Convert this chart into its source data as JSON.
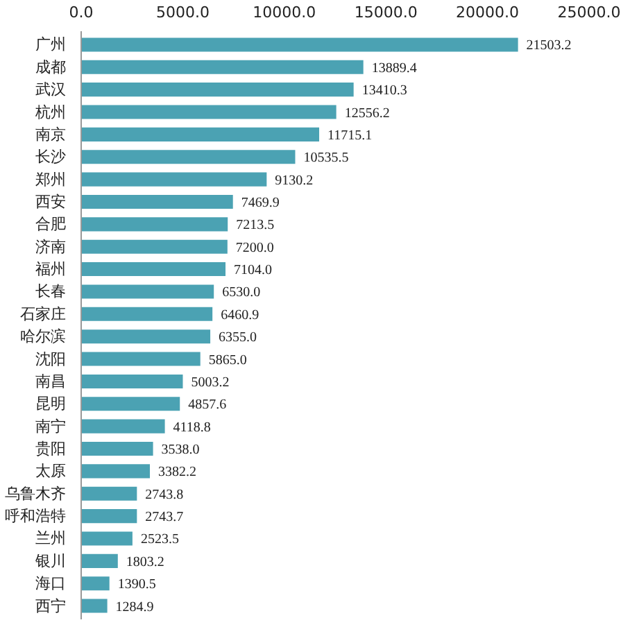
{
  "chart_data": {
    "type": "bar",
    "orientation": "horizontal",
    "categories": [
      "广州",
      "成都",
      "武汉",
      "杭州",
      "南京",
      "长沙",
      "郑州",
      "西安",
      "合肥",
      "济南",
      "福州",
      "长春",
      "石家庄",
      "哈尔滨",
      "沈阳",
      "南昌",
      "昆明",
      "南宁",
      "贵阳",
      "太原",
      "乌鲁木齐",
      "呼和浩特",
      "兰州",
      "银川",
      "海口",
      "西宁"
    ],
    "values": [
      21503.2,
      13889.4,
      13410.3,
      12556.2,
      11715.1,
      10535.5,
      9130.2,
      7469.9,
      7213.5,
      7200.0,
      7104.0,
      6530.0,
      6460.9,
      6355.0,
      5865.0,
      5003.2,
      4857.6,
      4118.8,
      3538.0,
      3382.2,
      2743.8,
      2743.7,
      2523.5,
      1803.2,
      1390.5,
      1284.9
    ],
    "value_labels": [
      "21503.2",
      "13889.4",
      "13410.3",
      "12556.2",
      "11715.1",
      "10535.5",
      "9130.2",
      "7469.9",
      "7213.5",
      "7200.0",
      "7104.0",
      "6530.0",
      "6460.9",
      "6355.0",
      "5865.0",
      "5003.2",
      "4857.6",
      "4118.8",
      "3538.0",
      "3382.2",
      "2743.8",
      "2743.7",
      "2523.5",
      "1803.2",
      "1390.5",
      "1284.9"
    ],
    "color": "#4ba2b3",
    "xlim": [
      0,
      25000
    ],
    "xticks": [
      {
        "value": 0,
        "label": "0.0"
      },
      {
        "value": 5000,
        "label": "5000.0"
      },
      {
        "value": 10000,
        "label": "10000.0"
      },
      {
        "value": 15000,
        "label": "15000.0"
      },
      {
        "value": 20000,
        "label": "20000.0"
      },
      {
        "value": 25000,
        "label": "25000.0"
      }
    ],
    "grid": false
  }
}
